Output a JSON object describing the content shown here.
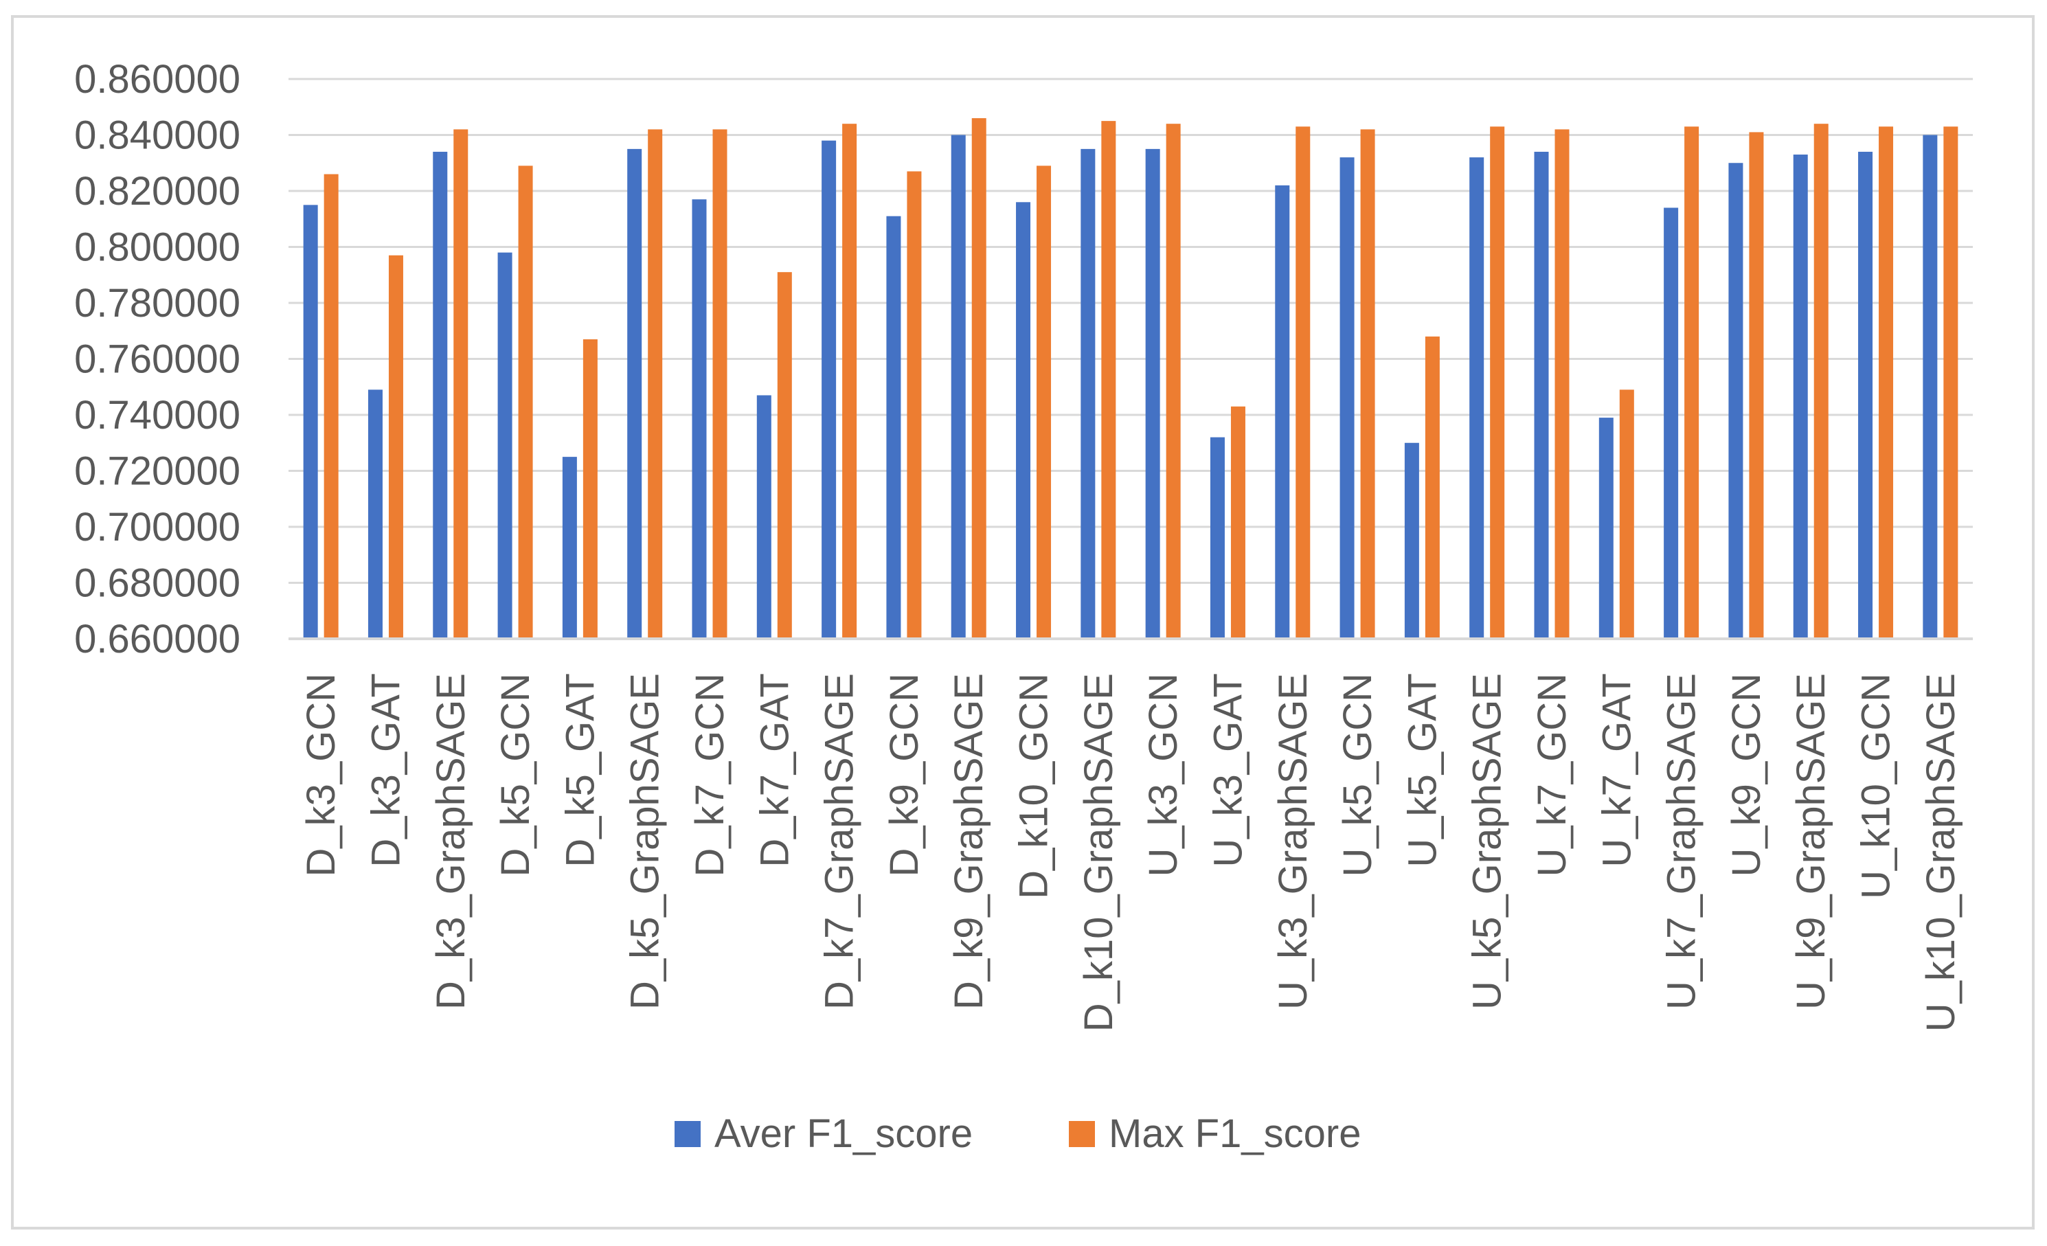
{
  "chart_data": {
    "type": "bar",
    "title": "",
    "xlabel": "",
    "ylabel": "",
    "ylim": [
      0.66,
      0.86
    ],
    "ytick_step": 0.02,
    "ytick_decimals": 6,
    "grid": true,
    "legend_position": "bottom",
    "categories": [
      "D_k3_GCN",
      "D_k3_GAT",
      "D_k3_GraphSAGE",
      "D_k5_GCN",
      "D_k5_GAT",
      "D_k5_GraphSAGE",
      "D_k7_GCN",
      "D_k7_GAT",
      "D_k7_GraphSAGE",
      "D_k9_GCN",
      "D_k9_GraphSAGE",
      "D_k10_GCN",
      "D_k10_GraphSAGE",
      "U_k3_GCN",
      "U_k3_GAT",
      "U_k3_GraphSAGE",
      "U_k5_GCN",
      "U_k5_GAT",
      "U_k5_GraphSAGE",
      "U_k7_GCN",
      "U_k7_GAT",
      "U_k7_GraphSAGE",
      "U_k9_GCN",
      "U_k9_GraphSAGE",
      "U_k10_GCN",
      "U_k10_GraphSAGE"
    ],
    "series": [
      {
        "name": "Aver F1_score",
        "color": "#4472c4",
        "values": [
          0.815,
          0.749,
          0.834,
          0.798,
          0.725,
          0.835,
          0.817,
          0.747,
          0.838,
          0.811,
          0.84,
          0.816,
          0.835,
          0.835,
          0.732,
          0.822,
          0.832,
          0.73,
          0.832,
          0.834,
          0.739,
          0.814,
          0.83,
          0.833,
          0.834,
          0.84
        ]
      },
      {
        "name": "Max F1_score",
        "color": "#ed7d31",
        "values": [
          0.826,
          0.797,
          0.842,
          0.829,
          0.767,
          0.842,
          0.842,
          0.791,
          0.844,
          0.827,
          0.846,
          0.829,
          0.845,
          0.844,
          0.743,
          0.843,
          0.842,
          0.768,
          0.843,
          0.842,
          0.749,
          0.843,
          0.841,
          0.844,
          0.843,
          0.843
        ]
      }
    ]
  }
}
